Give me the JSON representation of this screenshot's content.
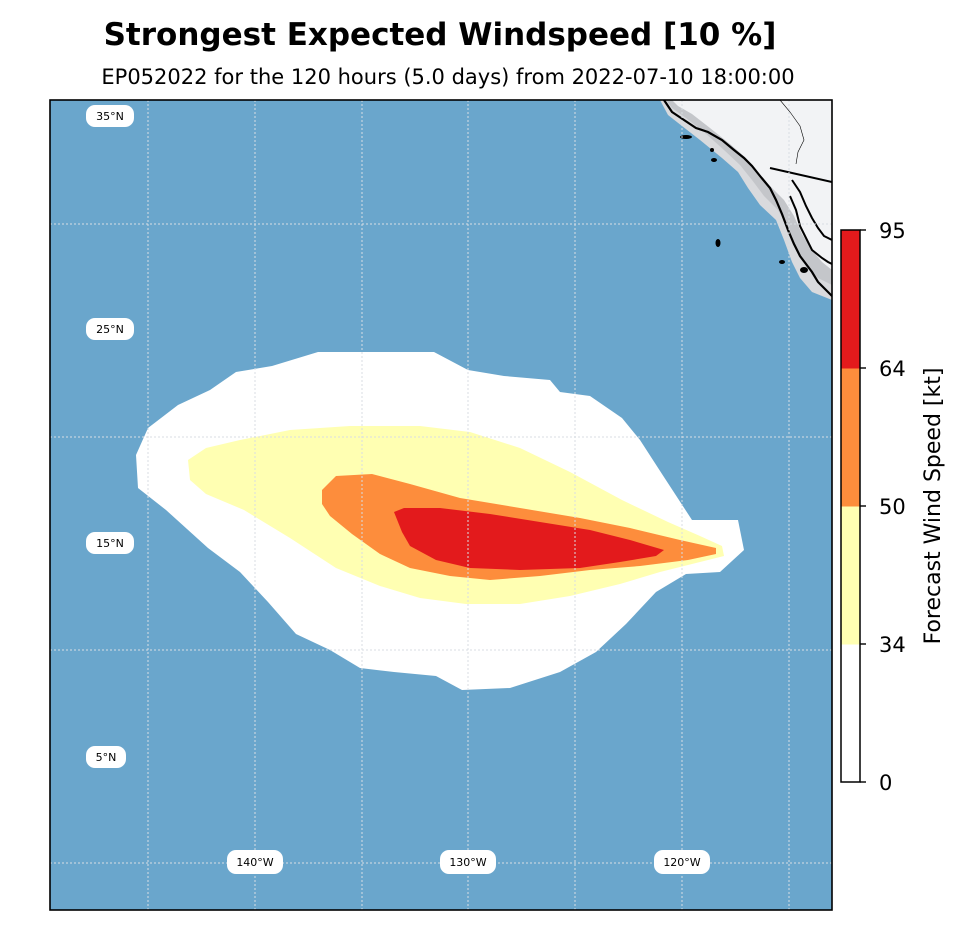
{
  "title": "Strongest Expected Windspeed [10 %]",
  "subtitle": "EP052022 for the 120 hours (5.0 days) from 2022-07-10 18:00:00",
  "map": {
    "ocean_color": "#6aa6cc",
    "land_color": "#f2f3f5",
    "coast_shades": [
      "#d9dadd",
      "#c4c6ca",
      "#e6e7ea"
    ],
    "lat_labels": [
      "35°N",
      "25°N",
      "15°N",
      "5°N"
    ],
    "lon_labels": [
      "140°W",
      "130°W",
      "120°W"
    ]
  },
  "colorbar": {
    "label": "Forecast Wind Speed [kt]",
    "ticks": [
      {
        "value": 0,
        "label": "0"
      },
      {
        "value": 34,
        "label": "34"
      },
      {
        "value": 50,
        "label": "50"
      },
      {
        "value": 64,
        "label": "64"
      },
      {
        "value": 95,
        "label": "95"
      }
    ],
    "bands": [
      {
        "from": 0,
        "to": 34,
        "color": "#ffffff"
      },
      {
        "from": 34,
        "to": 50,
        "color": "#ffffb2"
      },
      {
        "from": 50,
        "to": 64,
        "color": "#fd8d3c"
      },
      {
        "from": 64,
        "to": 95,
        "color": "#e31a1c"
      }
    ]
  },
  "wind_swath": [
    {
      "threshold_kt": 0,
      "color": "#ffffff"
    },
    {
      "threshold_kt": 34,
      "color": "#ffffb2"
    },
    {
      "threshold_kt": 50,
      "color": "#fd8d3c"
    },
    {
      "threshold_kt": 64,
      "color": "#e31a1c"
    }
  ]
}
